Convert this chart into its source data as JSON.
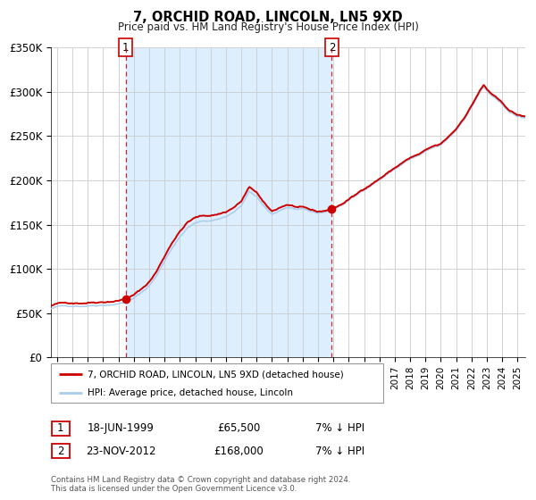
{
  "title": "7, ORCHID ROAD, LINCOLN, LN5 9XD",
  "subtitle": "Price paid vs. HM Land Registry's House Price Index (HPI)",
  "ylim": [
    0,
    350000
  ],
  "yticks": [
    0,
    50000,
    100000,
    150000,
    200000,
    250000,
    300000,
    350000
  ],
  "ytick_labels": [
    "£0",
    "£50K",
    "£100K",
    "£150K",
    "£200K",
    "£250K",
    "£300K",
    "£350K"
  ],
  "xlim_start": 1994.6,
  "xlim_end": 2025.5,
  "background_color": "#ffffff",
  "plot_bg_color": "#ffffff",
  "grid_color": "#cccccc",
  "shaded_region_color": "#ddeeff",
  "transaction1_date": 1999.46,
  "transaction1_price": 65500,
  "transaction2_date": 2012.9,
  "transaction2_price": 168000,
  "red_line_color": "#cc0000",
  "blue_line_color": "#aaccee",
  "legend_label_red": "7, ORCHID ROAD, LINCOLN, LN5 9XD (detached house)",
  "legend_label_blue": "HPI: Average price, detached house, Lincoln",
  "info1_date": "18-JUN-1999",
  "info1_price": "£65,500",
  "info1_hpi": "7% ↓ HPI",
  "info2_date": "23-NOV-2012",
  "info2_price": "£168,000",
  "info2_hpi": "7% ↓ HPI",
  "footer1": "Contains HM Land Registry data © Crown copyright and database right 2024.",
  "footer2": "This data is licensed under the Open Government Licence v3.0."
}
